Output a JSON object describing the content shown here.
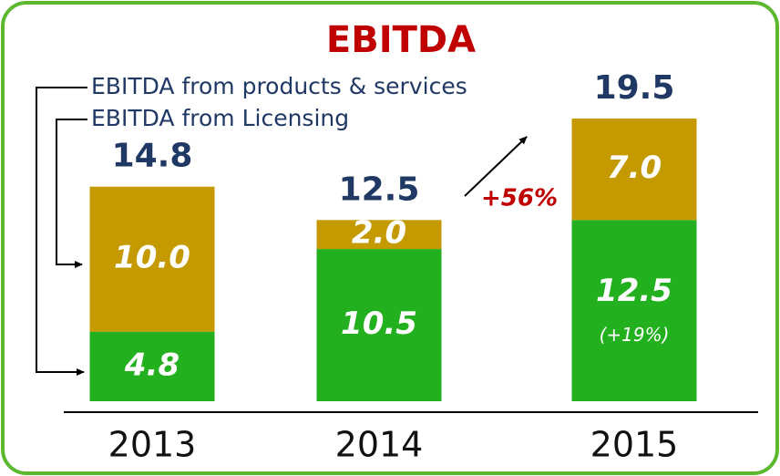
{
  "chart_data": {
    "type": "stacked_bar",
    "title": "EBITDA",
    "categories": [
      "2013",
      "2014",
      "2015"
    ],
    "series": [
      {
        "name": "EBITDA from products & services",
        "color": "#22b01e",
        "values": [
          4.8,
          10.5,
          12.5
        ]
      },
      {
        "name": "EBITDA from Licensing",
        "color": "#c49a00",
        "values": [
          10,
          2,
          7
        ],
        "value_labels": [
          "10.0",
          "2.0",
          "7.0"
        ]
      }
    ],
    "totals": [
      14.8,
      12.5,
      19.5
    ],
    "annotations": [
      "+56%",
      "(+19%)"
    ]
  }
}
